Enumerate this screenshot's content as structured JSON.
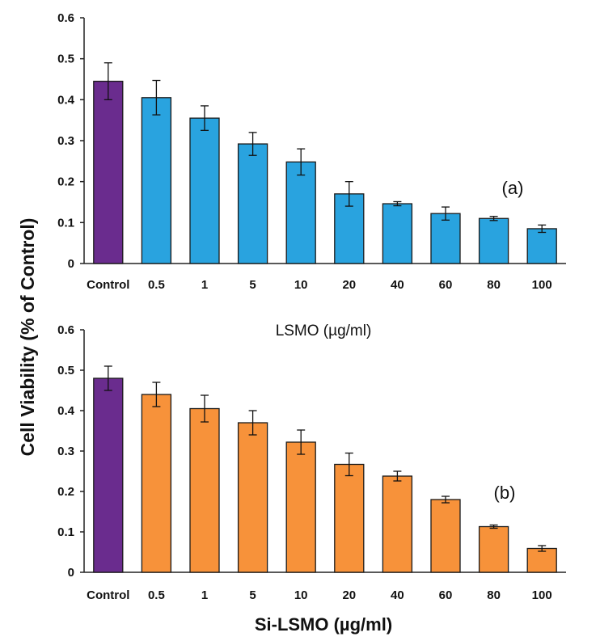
{
  "figure": {
    "ylabel": "Cell Viability (% of Control)"
  },
  "chart_data": [
    {
      "type": "bar",
      "panel_label": "(a)",
      "xlabel": "LSMO (µg/ml)",
      "categories": [
        "Control",
        "0.5",
        "1",
        "5",
        "10",
        "20",
        "40",
        "60",
        "80",
        "100"
      ],
      "values": [
        0.445,
        0.405,
        0.355,
        0.292,
        0.248,
        0.17,
        0.146,
        0.122,
        0.11,
        0.085
      ],
      "errors": [
        0.045,
        0.042,
        0.03,
        0.028,
        0.032,
        0.03,
        0.005,
        0.016,
        0.005,
        0.009
      ],
      "bar_colors": [
        "#6a2c8e",
        "#29a3df",
        "#29a3df",
        "#29a3df",
        "#29a3df",
        "#29a3df",
        "#29a3df",
        "#29a3df",
        "#29a3df",
        "#29a3df"
      ],
      "ylim": [
        0,
        0.6
      ],
      "yticks": [
        "0",
        "0.1",
        "0.2",
        "0.3",
        "0.4",
        "0.5",
        "0.6"
      ],
      "grid": false
    },
    {
      "type": "bar",
      "panel_label": "(b)",
      "xlabel": "Si-LSMO (µg/ml)",
      "categories": [
        "Control",
        "0.5",
        "1",
        "5",
        "10",
        "20",
        "40",
        "60",
        "80",
        "100"
      ],
      "values": [
        0.48,
        0.44,
        0.405,
        0.37,
        0.322,
        0.267,
        0.238,
        0.18,
        0.113,
        0.059
      ],
      "errors": [
        0.03,
        0.03,
        0.033,
        0.03,
        0.03,
        0.028,
        0.012,
        0.008,
        0.004,
        0.007
      ],
      "bar_colors": [
        "#6a2c8e",
        "#f7923a",
        "#f7923a",
        "#f7923a",
        "#f7923a",
        "#f7923a",
        "#f7923a",
        "#f7923a",
        "#f7923a",
        "#f7923a"
      ],
      "ylim": [
        0,
        0.6
      ],
      "yticks": [
        "0",
        "0.1",
        "0.2",
        "0.3",
        "0.4",
        "0.5",
        "0.6"
      ],
      "grid": false
    }
  ]
}
